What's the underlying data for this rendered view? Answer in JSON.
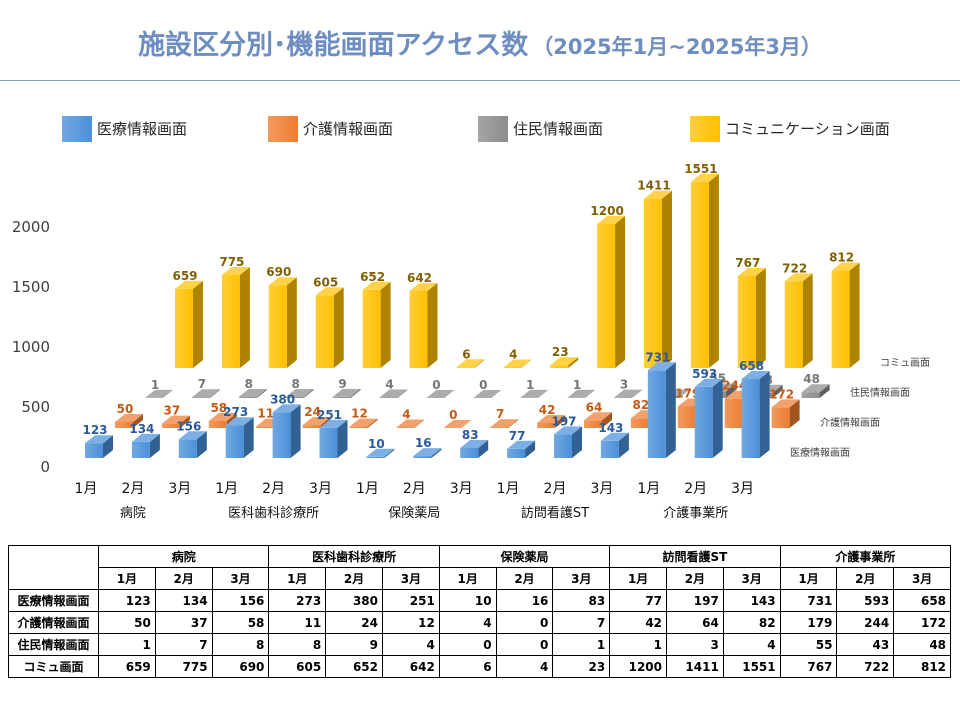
{
  "chart_data": {
    "type": "bar",
    "three_d": true,
    "title": "施設区分別･機能画面アクセス数",
    "subtitle": "（2025年1月~2025年3月）",
    "groups": [
      {
        "name": "病院",
        "months": [
          "1月",
          "2月",
          "3月"
        ]
      },
      {
        "name": "医科歯科診療所",
        "months": [
          "1月",
          "2月",
          "3月"
        ]
      },
      {
        "name": "保険薬局",
        "months": [
          "1月",
          "2月",
          "3月"
        ]
      },
      {
        "name": "訪問看護ST",
        "months": [
          "1月",
          "2月",
          "3月"
        ]
      },
      {
        "name": "介護事業所",
        "months": [
          "1月",
          "2月",
          "3月"
        ]
      }
    ],
    "series": [
      {
        "name": "医療情報画面",
        "label": "医療情報画面",
        "color": "#4a90d9",
        "label_color": "#2a5a9e",
        "values": [
          123,
          134,
          156,
          273,
          380,
          251,
          10,
          16,
          83,
          77,
          197,
          143,
          731,
          593,
          658
        ]
      },
      {
        "name": "介護情報画面",
        "label": "介護情報画面",
        "color": "#ed7d31",
        "label_color": "#c55a11",
        "values": [
          50,
          37,
          58,
          11,
          24,
          12,
          4,
          0,
          7,
          42,
          64,
          82,
          179,
          244,
          172
        ]
      },
      {
        "name": "住民情報画面",
        "label": "住民情報画面",
        "color": "#8c8c8c",
        "label_color": "#767676",
        "values": [
          1,
          7,
          8,
          8,
          9,
          4,
          0,
          0,
          1,
          1,
          3,
          4,
          55,
          43,
          48
        ]
      },
      {
        "name": "コミュニケーション画面",
        "label": "コミュ画面",
        "color": "#ffc000",
        "label_color": "#806000",
        "values": [
          659,
          775,
          690,
          605,
          652,
          642,
          6,
          4,
          23,
          1200,
          1411,
          1551,
          767,
          722,
          812
        ]
      }
    ],
    "y_ticks": [
      0,
      500,
      1000,
      1500,
      2000
    ],
    "ylim": [
      0,
      2000
    ],
    "grid": false,
    "legend": "top",
    "data_labels": true
  }
}
